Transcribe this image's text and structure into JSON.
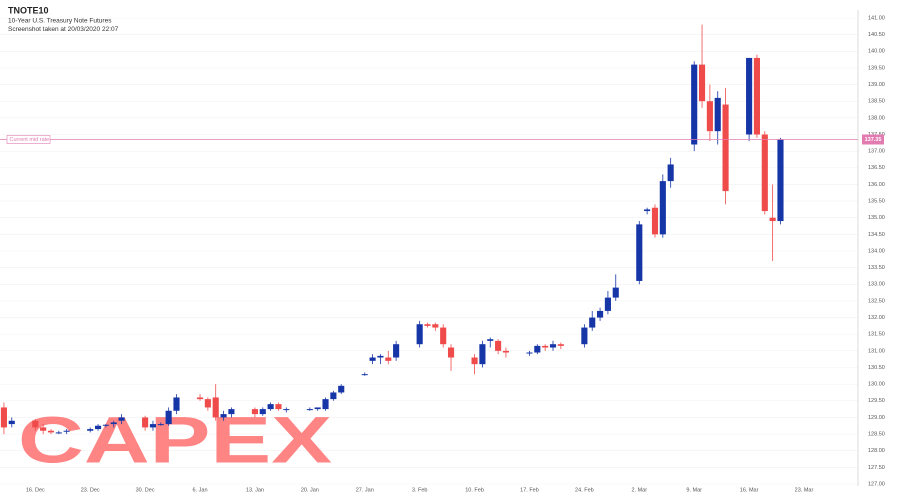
{
  "chart_data": {
    "type": "candlestick",
    "title": "TNOTE10",
    "subtitle": "10-Year U.S. Treasury Note Futures",
    "note": "Screenshot taken at 20/03/2020 22:07",
    "watermark": "CAPEX",
    "current_mid_rate": {
      "label": "Current mid rate",
      "value": 137.35,
      "color": "#e27bb0"
    },
    "up_color": "#1636a8",
    "down_color": "#f04b4b",
    "grid": true,
    "categories": [
      null,
      null,
      null,
      null,
      "16. Dec",
      null,
      null,
      null,
      null,
      null,
      null,
      "23. Dec",
      null,
      null,
      null,
      null,
      null,
      null,
      "30. Dec",
      null,
      null,
      null,
      null,
      null,
      null,
      "6. Jan",
      null,
      null,
      null,
      null,
      null,
      null,
      "13. Jan",
      null,
      null,
      null,
      null,
      null,
      null,
      "20. Jan",
      null,
      null,
      null,
      null,
      null,
      null,
      "27. Jan",
      null,
      null,
      null,
      null,
      null,
      null,
      "3. Feb",
      null,
      null,
      null,
      null,
      null,
      null,
      "10. Feb",
      null,
      null,
      null,
      null,
      null,
      null,
      "17. Feb",
      null,
      null,
      null,
      null,
      null,
      null,
      "24. Feb",
      null,
      null,
      null,
      null,
      null,
      null,
      "2. Mar",
      null,
      null,
      null,
      null,
      null,
      null,
      "9. Mar",
      null,
      null,
      null,
      null,
      null,
      null,
      "16. Mar",
      null,
      null,
      null,
      null,
      null,
      null,
      "23. Mar",
      null,
      null,
      null,
      null,
      null,
      null
    ],
    "open": [
      129.3,
      128.8,
      null,
      null,
      128.9,
      128.7,
      128.6,
      128.55,
      128.6,
      null,
      null,
      128.6,
      128.65,
      128.75,
      128.8,
      128.9,
      null,
      null,
      129.0,
      128.7,
      128.8,
      128.8,
      129.2,
      null,
      null,
      129.6,
      129.55,
      129.6,
      129.0,
      129.1,
      null,
      null,
      129.25,
      129.1,
      129.25,
      129.4,
      129.25,
      null,
      null,
      129.25,
      129.25,
      129.25,
      129.55,
      129.75,
      null,
      null,
      130.3,
      130.7,
      130.8,
      130.8,
      130.8,
      null,
      null,
      131.2,
      131.8,
      131.8,
      131.7,
      131.1,
      null,
      null,
      130.8,
      130.6,
      131.3,
      131.3,
      131.0,
      null,
      null,
      130.95,
      130.95,
      131.15,
      131.1,
      131.2,
      null,
      null,
      131.2,
      131.7,
      132.0,
      132.2,
      132.6,
      null,
      null,
      133.1,
      135.2,
      135.3,
      134.5,
      136.1,
      null,
      null,
      137.2,
      139.6,
      138.5,
      137.6,
      138.4,
      null,
      null,
      137.5,
      139.8,
      137.5,
      135.0,
      134.9,
      null,
      null,
      null,
      null,
      null,
      null,
      null,
      null,
      null
    ],
    "high": [
      129.45,
      129.0,
      null,
      null,
      128.95,
      128.8,
      128.65,
      128.6,
      128.65,
      null,
      null,
      128.7,
      128.8,
      128.8,
      128.9,
      129.1,
      null,
      null,
      129.05,
      128.9,
      128.85,
      129.3,
      129.7,
      null,
      null,
      129.7,
      129.6,
      130.0,
      129.2,
      129.3,
      null,
      null,
      129.3,
      129.3,
      129.45,
      129.45,
      129.3,
      null,
      null,
      129.3,
      129.3,
      129.6,
      129.8,
      130.0,
      null,
      null,
      130.35,
      130.9,
      130.9,
      131.0,
      131.3,
      null,
      null,
      131.9,
      131.85,
      131.85,
      131.8,
      131.2,
      null,
      null,
      130.9,
      131.3,
      131.4,
      131.35,
      131.1,
      null,
      null,
      131.0,
      131.2,
      131.2,
      131.3,
      131.25,
      null,
      null,
      131.8,
      132.2,
      132.3,
      132.8,
      133.3,
      null,
      null,
      134.9,
      135.3,
      135.4,
      136.3,
      136.8,
      null,
      null,
      139.7,
      140.8,
      139.0,
      138.8,
      138.9,
      null,
      null,
      139.8,
      139.9,
      137.6,
      136.0,
      137.4,
      null,
      null,
      null,
      null,
      null,
      null,
      null,
      null,
      null
    ],
    "low": [
      128.5,
      128.7,
      null,
      null,
      128.6,
      128.5,
      128.5,
      128.5,
      128.5,
      null,
      null,
      128.55,
      128.6,
      128.7,
      128.7,
      128.8,
      null,
      null,
      128.6,
      128.6,
      128.75,
      128.75,
      129.1,
      null,
      null,
      129.5,
      129.2,
      128.9,
      128.9,
      129.0,
      null,
      null,
      129.0,
      129.05,
      129.2,
      129.2,
      129.15,
      null,
      null,
      129.2,
      129.2,
      129.2,
      129.5,
      129.7,
      null,
      null,
      130.25,
      130.6,
      130.6,
      130.6,
      130.7,
      null,
      null,
      131.1,
      131.7,
      131.6,
      131.1,
      130.4,
      null,
      null,
      130.3,
      130.5,
      131.1,
      130.9,
      130.8,
      null,
      null,
      130.85,
      130.9,
      131.0,
      131.0,
      131.05,
      null,
      null,
      131.1,
      131.6,
      131.9,
      132.1,
      132.5,
      null,
      null,
      133.0,
      135.1,
      134.4,
      134.4,
      135.9,
      null,
      null,
      137.0,
      138.3,
      137.3,
      137.2,
      135.4,
      null,
      null,
      137.3,
      137.4,
      135.1,
      133.7,
      134.8,
      null,
      null,
      null,
      null,
      null,
      null,
      null,
      null,
      null
    ],
    "close": [
      128.7,
      128.9,
      null,
      null,
      128.7,
      128.6,
      128.55,
      128.55,
      128.6,
      null,
      null,
      128.65,
      128.75,
      128.78,
      128.85,
      129.0,
      null,
      null,
      128.7,
      128.8,
      128.8,
      129.2,
      129.6,
      null,
      null,
      129.55,
      129.3,
      129.0,
      129.1,
      129.25,
      null,
      null,
      129.1,
      129.25,
      129.4,
      129.25,
      129.25,
      null,
      null,
      129.25,
      129.3,
      129.55,
      129.75,
      129.95,
      null,
      null,
      130.3,
      130.8,
      130.85,
      130.7,
      131.2,
      null,
      null,
      131.8,
      131.75,
      131.7,
      131.2,
      130.8,
      null,
      null,
      130.6,
      131.2,
      131.35,
      131.0,
      130.95,
      null,
      null,
      130.95,
      131.15,
      131.1,
      131.2,
      131.15,
      null,
      null,
      131.7,
      132.0,
      132.2,
      132.6,
      132.9,
      null,
      null,
      134.8,
      135.25,
      134.5,
      136.1,
      136.6,
      null,
      null,
      139.6,
      138.5,
      137.6,
      138.6,
      135.8,
      null,
      null,
      139.8,
      137.5,
      135.2,
      134.9,
      137.35,
      null,
      null,
      null,
      null,
      null,
      null,
      null,
      null,
      null
    ],
    "ylim": [
      127,
      141
    ],
    "yticks": [
      {
        "value": 127,
        "label": "127.00"
      },
      {
        "value": 127.5,
        "label": "127.50"
      },
      {
        "value": 128,
        "label": "128.00"
      },
      {
        "value": 128.5,
        "label": "128.50"
      },
      {
        "value": 129,
        "label": "129.00"
      },
      {
        "value": 129.5,
        "label": "129.50"
      },
      {
        "value": 130,
        "label": "130.00"
      },
      {
        "value": 130.5,
        "label": "130.50"
      },
      {
        "value": 131,
        "label": "131.00"
      },
      {
        "value": 131.5,
        "label": "131.50"
      },
      {
        "value": 132,
        "label": "132.00"
      },
      {
        "value": 132.5,
        "label": "132.50"
      },
      {
        "value": 133,
        "label": "133.00"
      },
      {
        "value": 133.5,
        "label": "133.50"
      },
      {
        "value": 134,
        "label": "134.00"
      },
      {
        "value": 134.5,
        "label": "134.50"
      },
      {
        "value": 135,
        "label": "135.00"
      },
      {
        "value": 135.5,
        "label": "135.50"
      },
      {
        "value": 136,
        "label": "136.00"
      },
      {
        "value": 136.5,
        "label": "136.50"
      },
      {
        "value": 137,
        "label": "137.00"
      },
      {
        "value": 137.5,
        "label": "137.50"
      },
      {
        "value": 138,
        "label": "138.00"
      },
      {
        "value": 138.5,
        "label": "138.50"
      },
      {
        "value": 139,
        "label": "139.00"
      },
      {
        "value": 139.5,
        "label": "139.50"
      },
      {
        "value": 140,
        "label": "140.00"
      },
      {
        "value": 140.5,
        "label": "140.50"
      },
      {
        "value": 141,
        "label": "141.00"
      }
    ]
  }
}
